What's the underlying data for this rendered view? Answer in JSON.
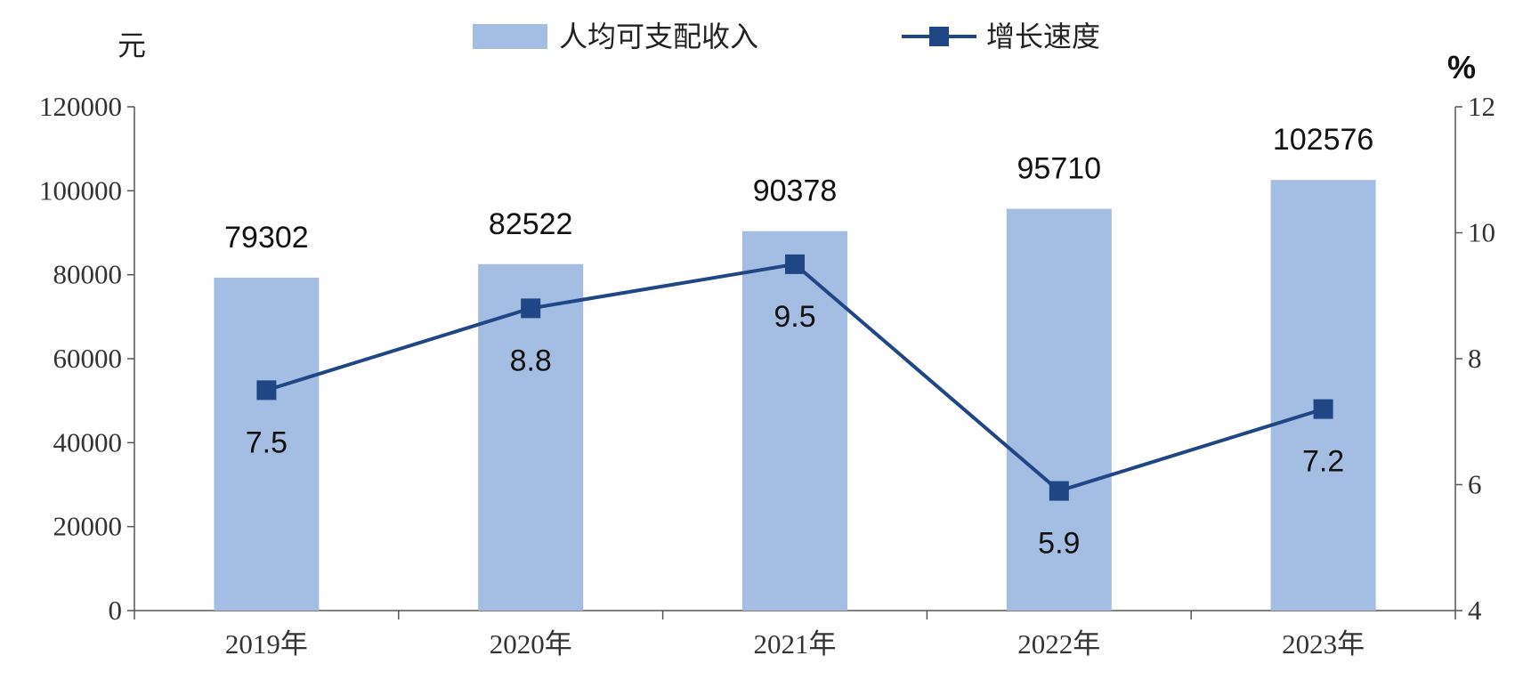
{
  "chart_data": {
    "type": "bar",
    "categories": [
      "2019年",
      "2020年",
      "2021年",
      "2022年",
      "2023年"
    ],
    "series": [
      {
        "name": "人均可支配收入",
        "type": "bar",
        "axis": "left",
        "color": "#a3bde3",
        "values": [
          79302,
          82522,
          90378,
          95710,
          102576
        ],
        "labels": [
          "79302",
          "82522",
          "90378",
          "95710",
          "102576"
        ]
      },
      {
        "name": "增长速度",
        "type": "line",
        "axis": "right",
        "color": "#1f4685",
        "marker": "square",
        "values": [
          7.5,
          8.8,
          9.5,
          5.9,
          7.2
        ],
        "labels": [
          "7.5",
          "8.8",
          "9.5",
          "5.9",
          "7.2"
        ]
      }
    ],
    "y_left": {
      "unit": "元",
      "min": 0,
      "max": 120000,
      "ticks": [
        0,
        20000,
        40000,
        60000,
        80000,
        100000,
        120000
      ],
      "tick_labels": [
        "0",
        "20000",
        "40000",
        "60000",
        "80000",
        "100000",
        "120000"
      ]
    },
    "y_right": {
      "unit": "%",
      "min": 4,
      "max": 12,
      "ticks": [
        4,
        6,
        8,
        10,
        12
      ],
      "tick_labels": [
        "4",
        "6",
        "8",
        "10",
        "12"
      ]
    },
    "legend": {
      "position": "top-center"
    },
    "grid": false
  }
}
